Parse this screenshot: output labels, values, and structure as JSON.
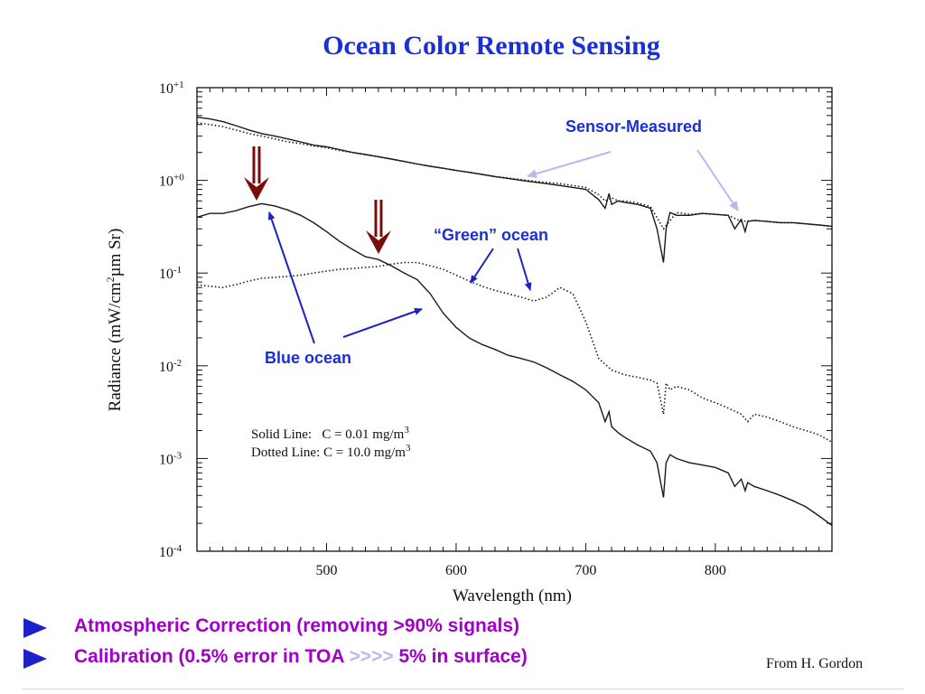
{
  "title": "Ocean Color Remote Sensing",
  "chart_data": {
    "type": "line",
    "xlabel": "Wavelength (nm)",
    "ylabel_parts": [
      "Radiance  (mW/cm",
      "2",
      "µm Sr)"
    ],
    "x_ticks": [
      500,
      600,
      700,
      800
    ],
    "y_ticks": [
      {
        "base": "10",
        "exp": "+1",
        "value": 10
      },
      {
        "base": "10",
        "exp": "+0",
        "value": 1
      },
      {
        "base": "10",
        "exp": "-1",
        "value": 0.1
      },
      {
        "base": "10",
        "exp": "-2",
        "value": 0.01
      },
      {
        "base": "10",
        "exp": "-3",
        "value": 0.001
      },
      {
        "base": "10",
        "exp": "-4",
        "value": 0.0001
      }
    ],
    "xlim": [
      400,
      890
    ],
    "ylim": [
      0.0001,
      10
    ],
    "y_scale": "log",
    "series": [
      {
        "style": "solid",
        "x": [
          400,
          410,
          420,
          430,
          440,
          450,
          460,
          470,
          480,
          490,
          500,
          510,
          520,
          530,
          540,
          550,
          560,
          570,
          580,
          590,
          600,
          610,
          620,
          630,
          640,
          650,
          660,
          670,
          680,
          690,
          700,
          710,
          715,
          718,
          720,
          725,
          730,
          740,
          750,
          755,
          760,
          762,
          765,
          770,
          780,
          790,
          800,
          810,
          815,
          820,
          823,
          825,
          830,
          840,
          850,
          860,
          870,
          880,
          890
        ],
        "y": [
          4.8,
          4.6,
          4.3,
          3.9,
          3.5,
          3.2,
          3.0,
          2.8,
          2.6,
          2.4,
          2.3,
          2.15,
          2.0,
          1.9,
          1.8,
          1.7,
          1.6,
          1.5,
          1.42,
          1.35,
          1.28,
          1.22,
          1.16,
          1.1,
          1.05,
          1.0,
          0.96,
          0.92,
          0.88,
          0.84,
          0.8,
          0.62,
          0.5,
          0.72,
          0.55,
          0.6,
          0.58,
          0.55,
          0.5,
          0.3,
          0.13,
          0.3,
          0.45,
          0.42,
          0.42,
          0.44,
          0.43,
          0.42,
          0.3,
          0.38,
          0.28,
          0.36,
          0.37,
          0.36,
          0.35,
          0.35,
          0.34,
          0.33,
          0.32
        ]
      },
      {
        "style": "dotted",
        "x": [
          400,
          410,
          420,
          430,
          440,
          450,
          460,
          470,
          480,
          490,
          500,
          510,
          520,
          530,
          540,
          550,
          560,
          570,
          580,
          590,
          600,
          610,
          620,
          630,
          640,
          650,
          660,
          670,
          680,
          690,
          700,
          710,
          715,
          720,
          725,
          730,
          740,
          750,
          760,
          770,
          780,
          790,
          800,
          810,
          820,
          830,
          840,
          850,
          860,
          870,
          880,
          890
        ],
        "y": [
          4.2,
          4.0,
          3.8,
          3.5,
          3.2,
          3.0,
          2.8,
          2.6,
          2.5,
          2.35,
          2.25,
          2.1,
          2.0,
          1.9,
          1.8,
          1.7,
          1.6,
          1.5,
          1.42,
          1.35,
          1.28,
          1.22,
          1.16,
          1.1,
          1.06,
          1.02,
          0.98,
          0.95,
          0.92,
          0.88,
          0.84,
          0.7,
          0.6,
          0.65,
          0.6,
          0.6,
          0.57,
          0.52,
          0.3,
          0.45,
          0.43,
          0.44,
          0.43,
          0.42,
          0.36,
          0.37,
          0.36,
          0.35,
          0.35,
          0.34,
          0.33,
          0.32
        ]
      },
      {
        "style": "solid",
        "x": [
          400,
          410,
          420,
          430,
          440,
          450,
          460,
          470,
          480,
          490,
          500,
          510,
          520,
          530,
          540,
          550,
          560,
          570,
          580,
          590,
          600,
          610,
          620,
          630,
          640,
          650,
          660,
          670,
          680,
          690,
          700,
          710,
          715,
          718,
          720,
          725,
          730,
          740,
          750,
          755,
          760,
          762,
          765,
          770,
          780,
          790,
          800,
          810,
          815,
          820,
          823,
          825,
          830,
          840,
          850,
          860,
          870,
          880,
          890
        ],
        "y": [
          0.4,
          0.44,
          0.44,
          0.47,
          0.52,
          0.56,
          0.53,
          0.48,
          0.42,
          0.35,
          0.28,
          0.22,
          0.18,
          0.15,
          0.14,
          0.12,
          0.1,
          0.085,
          0.06,
          0.037,
          0.026,
          0.02,
          0.017,
          0.015,
          0.013,
          0.012,
          0.011,
          0.0095,
          0.008,
          0.0068,
          0.0055,
          0.004,
          0.0025,
          0.0032,
          0.0022,
          0.0019,
          0.0017,
          0.0014,
          0.0012,
          0.0009,
          0.00038,
          0.0009,
          0.0011,
          0.001,
          0.0009,
          0.00085,
          0.0008,
          0.0007,
          0.0005,
          0.0006,
          0.00045,
          0.00055,
          0.0005,
          0.00045,
          0.0004,
          0.00035,
          0.0003,
          0.00024,
          0.00019
        ]
      },
      {
        "style": "dotted",
        "x": [
          400,
          410,
          420,
          430,
          440,
          450,
          460,
          470,
          480,
          490,
          500,
          510,
          520,
          530,
          540,
          550,
          560,
          570,
          580,
          590,
          600,
          610,
          620,
          630,
          640,
          650,
          660,
          670,
          680,
          690,
          700,
          710,
          720,
          730,
          740,
          750,
          755,
          760,
          762,
          765,
          770,
          780,
          790,
          800,
          810,
          820,
          825,
          830,
          840,
          850,
          860,
          870,
          880,
          890
        ],
        "y": [
          0.075,
          0.072,
          0.07,
          0.075,
          0.082,
          0.088,
          0.09,
          0.092,
          0.095,
          0.1,
          0.105,
          0.11,
          0.112,
          0.115,
          0.118,
          0.125,
          0.13,
          0.13,
          0.12,
          0.11,
          0.095,
          0.082,
          0.072,
          0.065,
          0.06,
          0.055,
          0.05,
          0.055,
          0.07,
          0.06,
          0.03,
          0.012,
          0.009,
          0.008,
          0.0075,
          0.007,
          0.0065,
          0.003,
          0.0065,
          0.0055,
          0.006,
          0.0055,
          0.0045,
          0.004,
          0.0035,
          0.003,
          0.0025,
          0.003,
          0.0028,
          0.0025,
          0.0022,
          0.002,
          0.0018,
          0.0015
        ]
      }
    ],
    "annotations": {
      "sensor_measured": "Sensor-Measured",
      "green_ocean": "“Green” ocean",
      "blue_ocean": "Blue ocean"
    },
    "legend_lines": [
      {
        "text": "Solid Line:   C = 0.01 mg/m",
        "sup": "3"
      },
      {
        "text": "Dotted Line: C = 10.0 mg/m",
        "sup": "3"
      }
    ]
  },
  "bullets": [
    {
      "text": "Atmospheric Correction (removing >90% signals)"
    },
    {
      "pre": "Calibration (0.5% error in TOA ",
      "dim": ">>>>",
      "post": " 5% in surface)"
    }
  ],
  "credit": "From H. Gordon",
  "colors": {
    "title": "#1a2fd6",
    "annotation": "#1a2fd6",
    "bullet_text": "#a000c8",
    "bullet_marker": "#1a22c8",
    "down_arrow": "#7a0c0c",
    "light_arrow": "#b8b8f0"
  }
}
